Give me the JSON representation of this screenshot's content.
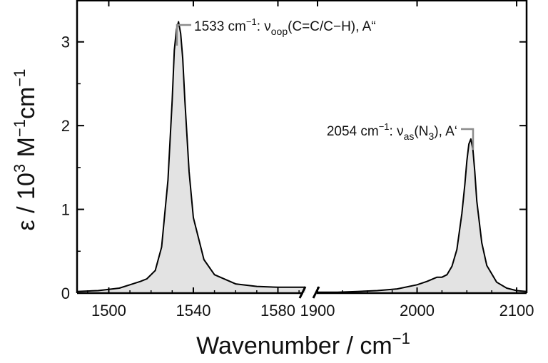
{
  "chart_data": {
    "type": "area",
    "title": "",
    "xlabel_text": "Wavenumber / cm",
    "xlabel_sup": "−1",
    "ylabel_eps": "ε / 10",
    "ylabel_exp": "3",
    "ylabel_m": " M",
    "ylabel_m_exp": "−1",
    "ylabel_cm": "cm",
    "ylabel_cm_exp": "−1",
    "ylim": [
      0,
      3.5
    ],
    "y_ticks": [
      "0",
      "1",
      "2",
      "3"
    ],
    "x_broken": true,
    "segments": [
      {
        "xlim": [
          1485,
          1593
        ],
        "x_ticks": [
          "1500",
          "1540",
          "1580"
        ],
        "x": [
          1485,
          1495,
          1505,
          1510,
          1515,
          1518,
          1522,
          1525,
          1528,
          1530,
          1531,
          1532,
          1533,
          1534,
          1535,
          1536,
          1538,
          1540,
          1545,
          1550,
          1560,
          1570,
          1580,
          1593
        ],
        "y": [
          0.02,
          0.03,
          0.06,
          0.1,
          0.14,
          0.17,
          0.27,
          0.55,
          1.35,
          2.3,
          2.9,
          3.15,
          3.24,
          3.1,
          2.8,
          2.3,
          1.45,
          0.9,
          0.4,
          0.22,
          0.11,
          0.08,
          0.07,
          0.07
        ]
      },
      {
        "xlim": [
          1900,
          2110
        ],
        "x_ticks": [
          "1900",
          "2000",
          "2100"
        ],
        "x": [
          1900,
          1920,
          1940,
          1960,
          1980,
          2000,
          2010,
          2020,
          2025,
          2030,
          2035,
          2040,
          2045,
          2048,
          2050,
          2052,
          2054,
          2056,
          2058,
          2060,
          2065,
          2070,
          2080,
          2090,
          2100,
          2110
        ],
        "y": [
          0.01,
          0.01,
          0.02,
          0.03,
          0.05,
          0.1,
          0.14,
          0.19,
          0.19,
          0.22,
          0.32,
          0.52,
          0.95,
          1.3,
          1.58,
          1.78,
          1.84,
          1.72,
          1.45,
          1.1,
          0.6,
          0.33,
          0.13,
          0.06,
          0.03,
          0.02
        ]
      }
    ],
    "annotations": [
      {
        "label": "1533 cm",
        "sup": "−1",
        "sep": ": ν",
        "sub": "oop",
        "rest": "(C=C/C−H), A“"
      },
      {
        "label": "2054 cm",
        "sup": "−1",
        "sep": ": ν",
        "sub": "as",
        "rest_pre": "(N",
        "sub2": "3",
        "rest": "), A‘"
      }
    ],
    "colors": {
      "fill": "#e3e3e3",
      "line": "#000000",
      "leader": "#8c8c8c"
    },
    "grid": false,
    "legend": "none"
  }
}
